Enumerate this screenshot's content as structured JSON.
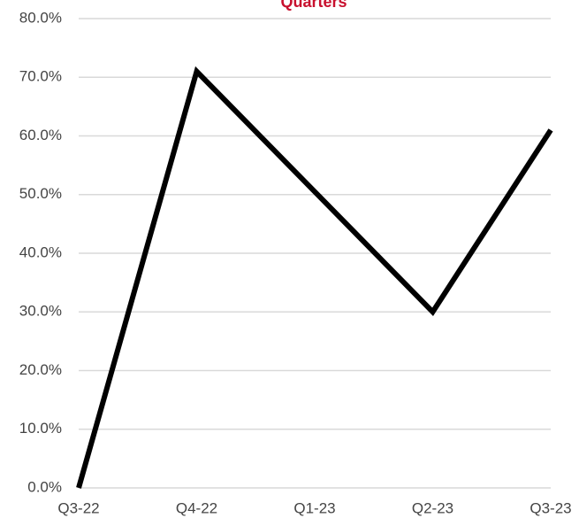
{
  "chart_data": {
    "type": "line",
    "title": "Quarters",
    "categories": [
      "Q3-22",
      "Q4-22",
      "Q1-23",
      "Q2-23",
      "Q3-23"
    ],
    "series": [
      {
        "name": "Quarters",
        "color": "#000000",
        "values": [
          0,
          71,
          50.5,
          30,
          61
        ]
      }
    ],
    "ylim": [
      0,
      80
    ],
    "yticks": [
      {
        "value": 0,
        "label": "0.0%"
      },
      {
        "value": 10,
        "label": "10.0%"
      },
      {
        "value": 20,
        "label": "20.0%"
      },
      {
        "value": 30,
        "label": "30.0%"
      },
      {
        "value": 40,
        "label": "40.0%"
      },
      {
        "value": 50,
        "label": "50.0%"
      },
      {
        "value": 60,
        "label": "60.0%"
      },
      {
        "value": 70,
        "label": "70.0%"
      },
      {
        "value": 80,
        "label": "80.0%"
      }
    ],
    "grid": true
  }
}
